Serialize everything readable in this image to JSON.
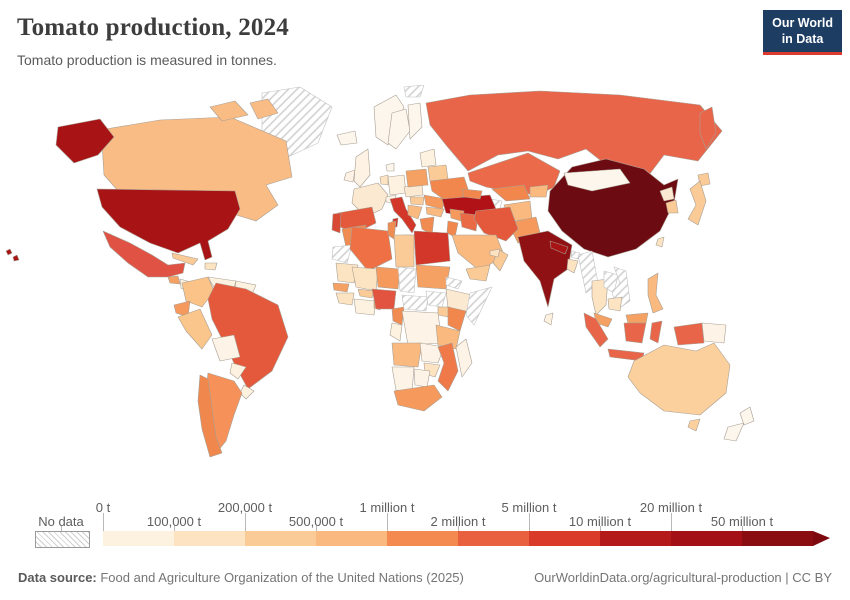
{
  "header": {
    "title": "Tomato production, 2024",
    "subtitle": "Tomato production is measured in tonnes.",
    "logo_line1": "Our World",
    "logo_line2": "in Data",
    "logo_bg": "#1d3d63",
    "logo_accent": "#dc3a2f"
  },
  "legend": {
    "no_data_label": "No data",
    "arrow_color": "#7e0a10",
    "bins": [
      {
        "label": "0 t",
        "color": "#fdf1e0",
        "label_row": "top"
      },
      {
        "label": "100,000 t",
        "color": "#fde3c1",
        "label_row": "bottom"
      },
      {
        "label": "200,000 t",
        "color": "#fbcb97",
        "label_row": "top"
      },
      {
        "label": "500,000 t",
        "color": "#f9b97f",
        "label_row": "bottom"
      },
      {
        "label": "1 million t",
        "color": "#f58a51",
        "label_row": "top"
      },
      {
        "label": "2 million t",
        "color": "#e9603f",
        "label_row": "bottom"
      },
      {
        "label": "5 million t",
        "color": "#d93a2a",
        "label_row": "top"
      },
      {
        "label": "10 million t",
        "color": "#b51a1b",
        "label_row": "bottom"
      },
      {
        "label": "20 million t",
        "color": "#a31116",
        "label_row": "top"
      },
      {
        "label": "50 million t",
        "color": "#8a0d12",
        "label_row": "bottom"
      }
    ]
  },
  "footer": {
    "source_label": "Data source:",
    "source_text": " Food and Agriculture Organization of the United Nations (2025)",
    "right_text": "OurWorldinData.org/agricultural-production | CC BY"
  },
  "chart_data": {
    "type": "choropleth_map",
    "title": "Tomato production, 2024",
    "subtitle": "Tomato production is measured in tonnes.",
    "unit": "tonnes",
    "legend_bin_labels": [
      "0 t",
      "100,000 t",
      "200,000 t",
      "500,000 t",
      "1 million t",
      "2 million t",
      "5 million t",
      "10 million t",
      "20 million t",
      "50 million t"
    ],
    "no_data_label": "No data",
    "countries_by_bin": {
      "50 million t +": [
        "China"
      ],
      "20-50 million t": [
        "India"
      ],
      "10-20 million t": [
        "United States",
        "Turkey"
      ],
      "5-10 million t": [
        "Italy",
        "Egypt",
        "Portugal"
      ],
      "2-5 million t": [
        "Mexico",
        "Brazil",
        "Spain",
        "Russia",
        "Nigeria",
        "Iran",
        "Indonesia",
        "Kazakhstan"
      ],
      "1-2 million t": [
        "Ukraine",
        "Algeria",
        "Morocco",
        "Iraq",
        "Uzbekistan",
        "Cameroon",
        "Kenya",
        "Chile",
        "Mozambique",
        "Greece",
        "Tunisia"
      ],
      "500,000-1 million t": [
        "Argentina",
        "Pakistan",
        "South Africa",
        "Niger",
        "Sudan",
        "Senegal",
        "Poland",
        "Romania",
        "Syria",
        "Ecuador",
        "Malaysia",
        "Philippines"
      ],
      "200,000-500,000 t": [
        "Canada",
        "Colombia",
        "Peru",
        "Saudi Arabia",
        "Afghanistan",
        "Japan",
        "South Korea",
        "Australia",
        "Libya",
        "Angola",
        "Tanzania",
        "Yemen",
        "Oman",
        "Cuba",
        "Belarus",
        "Hungary"
      ],
      "100,000-200,000 t": [
        "France",
        "Mali",
        "Mauritania",
        "Bangladesh",
        "Thailand",
        "Cambodia",
        "Zimbabwe",
        "United Arab Emirates"
      ],
      "0-100,000 t": [
        "Germany",
        "United Kingdom",
        "Norway",
        "Sweden",
        "Finland",
        "Iceland",
        "Venezuela",
        "Bolivia",
        "Paraguay",
        "Uruguay",
        "Democratic Republic of Congo",
        "Ethiopia",
        "Madagascar",
        "Mongolia",
        "New Zealand",
        "Papua New Guinea",
        "Sri Lanka"
      ],
      "No data": [
        "Greenland",
        "Western Sahara",
        "Chad",
        "Central African Republic",
        "South Sudan",
        "Eritrea",
        "Somalia",
        "Turkmenistan",
        "Myanmar",
        "Laos",
        "Vietnam",
        "Bhutan",
        "Svalbard"
      ]
    }
  },
  "map": {
    "ocean_color": "#ffffff",
    "border_color": "#a89f93",
    "countries": {
      "greenland": "nodata",
      "svalbard": "nodata",
      "canada": "#fabc85",
      "arctic1": "#fabc85",
      "arctic2": "#fabc85",
      "alaska": "#a81415",
      "usa": "#a81415",
      "hawaii": "#a81415",
      "mexico": "#e05243",
      "guatemala": "#f5a163",
      "honduras": "#fdf1e0",
      "costarica": "#fbcb97",
      "cuba": "#fbcb97",
      "hispaniola": "#fce3c2",
      "colombia": "#fbc388",
      "venezuela": "#fdf1e0",
      "guyanas": "#fdf1e0",
      "ecuador": "#f59a5c",
      "peru": "#fbc68c",
      "brazil": "#e4593c",
      "bolivia": "#fdf3e6",
      "paraguay": "#fdf1e0",
      "uruguay": "#fdf1e0",
      "argentina": "#f69259",
      "chile": "#f0884e",
      "iceland": "#fdf6ec",
      "uk": "#fdf2e4",
      "ireland": "#fdf2e4",
      "norway": "#fdf6ec",
      "sweden": "#fdf6ec",
      "finland": "#fdf6ec",
      "denmark": "#fdf6ec",
      "france": "#fce9d2",
      "spain": "#e4593c",
      "portugal": "#d84a33",
      "germany": "#fdf1e0",
      "benelux": "#fce3c2",
      "switzerland": "#fdf3e6",
      "italy": "#d2372a",
      "sicily": "#d2372a",
      "sardinia": "#d2372a",
      "austriaczech": "#fce9d2",
      "poland": "#f5a163",
      "baltics": "#fdf1e0",
      "belarus": "#fbcb97",
      "ukraine": "#f2874e",
      "romania": "#f59a5c",
      "hungary": "#fbcb97",
      "balkans": "#f9b97f",
      "bulgaria": "#f9b97f",
      "greece": "#f08b51",
      "turkey": "#b01218",
      "caucasus": "#f2874e",
      "russia": "#e8654a",
      "kamchatka": "#e8654a",
      "kazakhstan": "#ea6a4a",
      "uzbekistan": "#f2874e",
      "turkmenistan": "nodata",
      "kyrgyztajik": "#f9b97f",
      "afghanistan": "#f9b97f",
      "pakistan": "#f59a5c",
      "iran": "#e4593c",
      "iraq": "#ea6a45",
      "syria": "#f59a5c",
      "levant": "#f2874e",
      "saudi": "#f9b97f",
      "yemen": "#fbcb97",
      "oman": "#fbcb97",
      "uae": "#fce3c2",
      "morocco": "#f08b51",
      "wsahara": "nodata",
      "algeria": "#ef7044",
      "tunisia": "#f08b51",
      "libya": "#fbcb97",
      "egypt": "#d2372a",
      "mauritania": "#fce3c2",
      "mali": "#fce3c2",
      "senegal": "#f5a163",
      "guinea": "#fce3c2",
      "ivoryghana": "#fdf1e0",
      "burkina": "#fbcb97",
      "togobenin": "#f5a163",
      "niger": "#f59a5c",
      "chad": "nodata",
      "sudan": "#f5a163",
      "eritrea": "nodata",
      "nigeria": "#e25440",
      "cameroon": "#f08b51",
      "car": "nodata",
      "southsudan": "nodata",
      "ethiopia": "#fce9d2",
      "somalia": "nodata",
      "uganda": "#fbcb97",
      "kenya": "#f2874e",
      "drc": "#fdf3e6",
      "gaboncongo": "#fdf1e0",
      "tanzania": "#f9b97f",
      "angola": "#f9b97f",
      "zambia": "#fdf3e6",
      "mozambique": "#f0794a",
      "zimbabwe": "#fce3c2",
      "namibia": "#fdf3e6",
      "botswana": "#fdf3e6",
      "southafrica": "#f59a5c",
      "madagascar": "#fdf3e6",
      "india": "#8f1114",
      "nepal": "#a81415",
      "bhutan": "nodata",
      "bangladesh": "#fce3c2",
      "srilanka": "#fdf1e0",
      "china": "#6d0b12",
      "mongolia": "#fdf6ec",
      "nkorea": "#fce9d2",
      "skorea": "#fbcb97",
      "japan": "#fbcb97",
      "hokkaido": "#fbcb97",
      "taiwan": "#fce3c2",
      "myanmar": "nodata",
      "thailand": "#fce3c2",
      "laos": "nodata",
      "vietnam": "nodata",
      "cambodia": "#fce3c2",
      "malaysia": "#f5a163",
      "malayborneo": "#f5a163",
      "philippines": "#f9b97f",
      "sumatra": "#e8654a",
      "java": "#e8654a",
      "borneoindo": "#e8654a",
      "sulawesi": "#e8654a",
      "wpapua": "#e8654a",
      "png": "#fdf3e6",
      "australia": "#fbd09d",
      "tasmania": "#fbd09d",
      "nznorth": "#fdf6ec",
      "nzsouth": "#fdf6ec"
    }
  }
}
